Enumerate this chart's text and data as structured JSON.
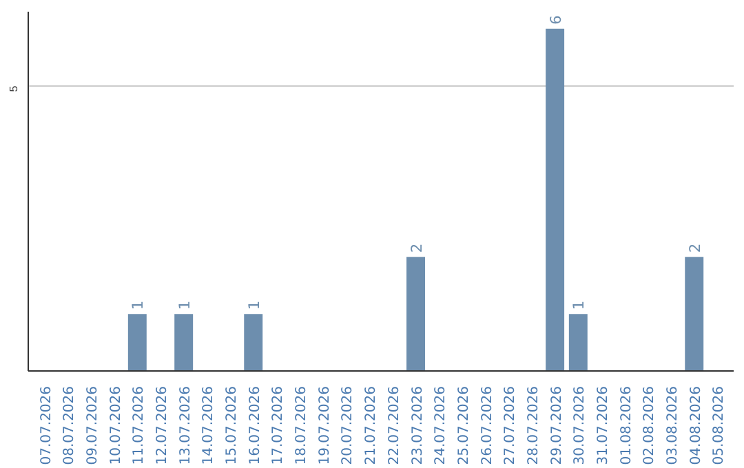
{
  "chart_data": {
    "type": "bar",
    "categories": [
      "07.07.2026",
      "08.07.2026",
      "09.07.2026",
      "10.07.2026",
      "11.07.2026",
      "12.07.2026",
      "13.07.2026",
      "14.07.2026",
      "15.07.2026",
      "16.07.2026",
      "17.07.2026",
      "18.07.2026",
      "19.07.2026",
      "20.07.2026",
      "21.07.2026",
      "22.07.2026",
      "23.07.2026",
      "24.07.2026",
      "25.07.2026",
      "26.07.2026",
      "27.07.2026",
      "28.07.2026",
      "29.07.2026",
      "30.07.2026",
      "31.07.2026",
      "01.08.2026",
      "02.08.2026",
      "03.08.2026",
      "04.08.2026",
      "05.08.2026"
    ],
    "values": [
      0,
      0,
      0,
      0,
      1,
      0,
      1,
      0,
      0,
      1,
      0,
      0,
      0,
      0,
      0,
      0,
      2,
      0,
      0,
      0,
      0,
      0,
      6,
      1,
      0,
      0,
      0,
      0,
      2,
      0
    ],
    "value_labels": [
      null,
      null,
      null,
      null,
      "1",
      null,
      "1",
      null,
      null,
      "1",
      null,
      null,
      null,
      null,
      null,
      null,
      "2",
      null,
      null,
      null,
      null,
      null,
      "6",
      "1",
      null,
      null,
      null,
      null,
      "2",
      null
    ],
    "color": "#6d8eae",
    "ylim": [
      0,
      6.3
    ],
    "yticks": [
      5
    ],
    "grid": "y"
  }
}
